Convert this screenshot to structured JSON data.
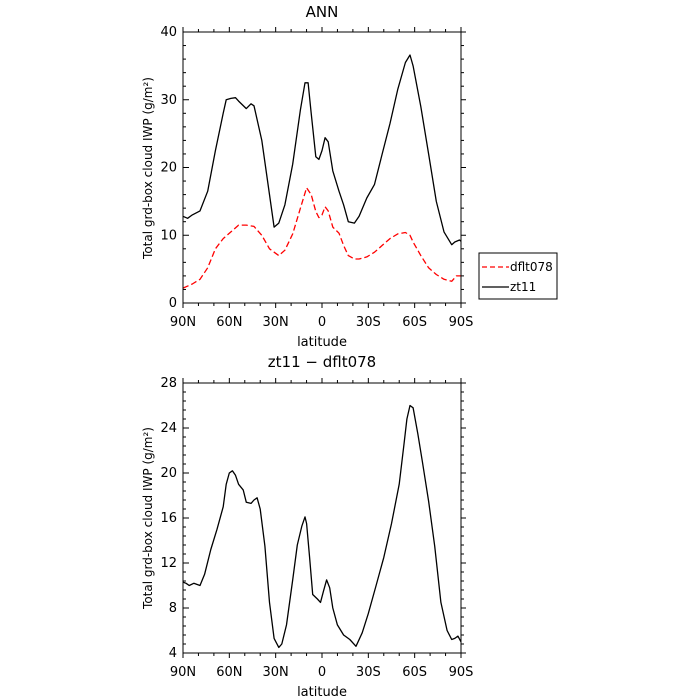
{
  "chart_data": [
    {
      "type": "line",
      "title": "ANN",
      "xlabel": "latitude",
      "ylabel": "Total grd-box cloud IWP (g/m²)",
      "xlim": [
        90,
        -90
      ],
      "ylim": [
        0,
        40
      ],
      "x_ticks": [
        90,
        60,
        30,
        0,
        -30,
        -60,
        -90
      ],
      "x_tick_labels": [
        "90N",
        "60N",
        "30N",
        "0",
        "30S",
        "60S",
        "90S"
      ],
      "y_ticks": [
        0,
        10,
        20,
        30,
        40
      ],
      "y_tick_labels": [
        "0",
        "10",
        "20",
        "30",
        "40"
      ],
      "legend_position": "right",
      "series": [
        {
          "name": "dflt078",
          "color": "#ff0000",
          "dash": "dashed",
          "x": [
            90,
            84,
            79,
            74,
            69,
            64,
            59,
            54,
            49,
            44,
            39,
            34,
            31,
            28,
            24,
            19,
            14,
            10,
            7,
            4,
            2,
            0,
            -2,
            -4,
            -7,
            -11,
            -14,
            -17,
            -21,
            -24,
            -29,
            -34,
            -39,
            -44,
            -49,
            -54,
            -57,
            -59,
            -64,
            -69,
            -74,
            -79,
            -84,
            -87,
            -90
          ],
          "y": [
            2.2,
            2.8,
            3.5,
            5.2,
            8.0,
            9.5,
            10.5,
            11.5,
            11.5,
            11.3,
            10.0,
            8.0,
            7.5,
            7.0,
            7.8,
            10.2,
            14.0,
            17.0,
            16.0,
            13.5,
            12.6,
            13.0,
            14.2,
            13.6,
            11.2,
            10.3,
            8.5,
            7.0,
            6.5,
            6.5,
            6.8,
            7.5,
            8.5,
            9.5,
            10.2,
            10.4,
            10.0,
            9.0,
            7.0,
            5.2,
            4.2,
            3.5,
            3.2,
            4.0,
            4.0
          ]
        },
        {
          "name": "zt11",
          "color": "#000000",
          "dash": "solid",
          "x": [
            90,
            87,
            84,
            79,
            74,
            69,
            64,
            62,
            59,
            56,
            54,
            49,
            46,
            44,
            39,
            34,
            31,
            28,
            24,
            19,
            14,
            11,
            9,
            7,
            4,
            2,
            0,
            -2,
            -4,
            -7,
            -11,
            -14,
            -17,
            -21,
            -24,
            -29,
            -34,
            -39,
            -44,
            -49,
            -54,
            -57,
            -59,
            -64,
            -69,
            -74,
            -79,
            -84,
            -86,
            -89,
            -90
          ],
          "y": [
            12.8,
            12.5,
            13.0,
            13.6,
            16.5,
            22.5,
            28.0,
            30.0,
            30.2,
            30.3,
            29.8,
            28.7,
            29.4,
            29.1,
            24.0,
            16.0,
            11.2,
            11.8,
            14.5,
            20.5,
            28.5,
            32.5,
            32.5,
            28.0,
            21.6,
            21.2,
            22.5,
            24.4,
            23.8,
            19.5,
            16.5,
            14.5,
            12.0,
            11.8,
            12.8,
            15.5,
            17.5,
            22.0,
            26.5,
            31.5,
            35.5,
            36.6,
            35.0,
            29.0,
            22.0,
            15.0,
            10.5,
            8.6,
            9.0,
            9.3,
            9.1
          ]
        }
      ]
    },
    {
      "type": "line",
      "title": "zt11 − dflt078",
      "xlabel": "latitude",
      "ylabel": "Total grd-box cloud IWP (g/m²)",
      "xlim": [
        90,
        -90
      ],
      "ylim": [
        4,
        28
      ],
      "x_ticks": [
        90,
        60,
        30,
        0,
        -30,
        -60,
        -90
      ],
      "x_tick_labels": [
        "90N",
        "60N",
        "30N",
        "0",
        "30S",
        "60S",
        "90S"
      ],
      "y_ticks": [
        4,
        8,
        12,
        16,
        20,
        24,
        28
      ],
      "y_tick_labels": [
        "4",
        "8",
        "12",
        "16",
        "20",
        "24",
        "28"
      ],
      "series": [
        {
          "color": "#000000",
          "dash": "solid",
          "x": [
            90,
            88,
            86,
            83,
            79,
            76,
            72,
            68,
            64,
            62,
            60,
            58,
            56,
            54,
            51,
            49,
            46,
            44,
            42,
            40,
            37,
            34,
            31,
            28,
            26,
            23,
            19,
            16,
            13,
            11,
            10,
            8,
            6,
            3,
            1,
            -1,
            -3,
            -5,
            -7,
            -10,
            -14,
            -18,
            -22,
            -26,
            -30,
            -35,
            -40,
            -45,
            -50,
            -53,
            -55,
            -57,
            -59,
            -62,
            -65,
            -69,
            -73,
            -77,
            -81,
            -84,
            -86,
            -88,
            -90
          ],
          "y": [
            10.3,
            10.2,
            10.0,
            10.2,
            10.0,
            11.0,
            13.2,
            15.0,
            17.0,
            19.0,
            20.0,
            20.2,
            19.8,
            19.0,
            18.5,
            17.4,
            17.3,
            17.6,
            17.8,
            16.8,
            13.5,
            8.5,
            5.3,
            4.5,
            4.8,
            6.5,
            10.5,
            13.6,
            15.3,
            16.1,
            15.5,
            12.5,
            9.2,
            8.8,
            8.5,
            9.5,
            10.5,
            9.8,
            8.0,
            6.5,
            5.6,
            5.2,
            4.6,
            5.8,
            7.5,
            10.0,
            12.5,
            15.5,
            19.0,
            22.5,
            24.8,
            26.0,
            25.8,
            23.5,
            21.0,
            17.5,
            13.5,
            8.5,
            6.0,
            5.2,
            5.3,
            5.5,
            5.0
          ]
        }
      ]
    }
  ]
}
